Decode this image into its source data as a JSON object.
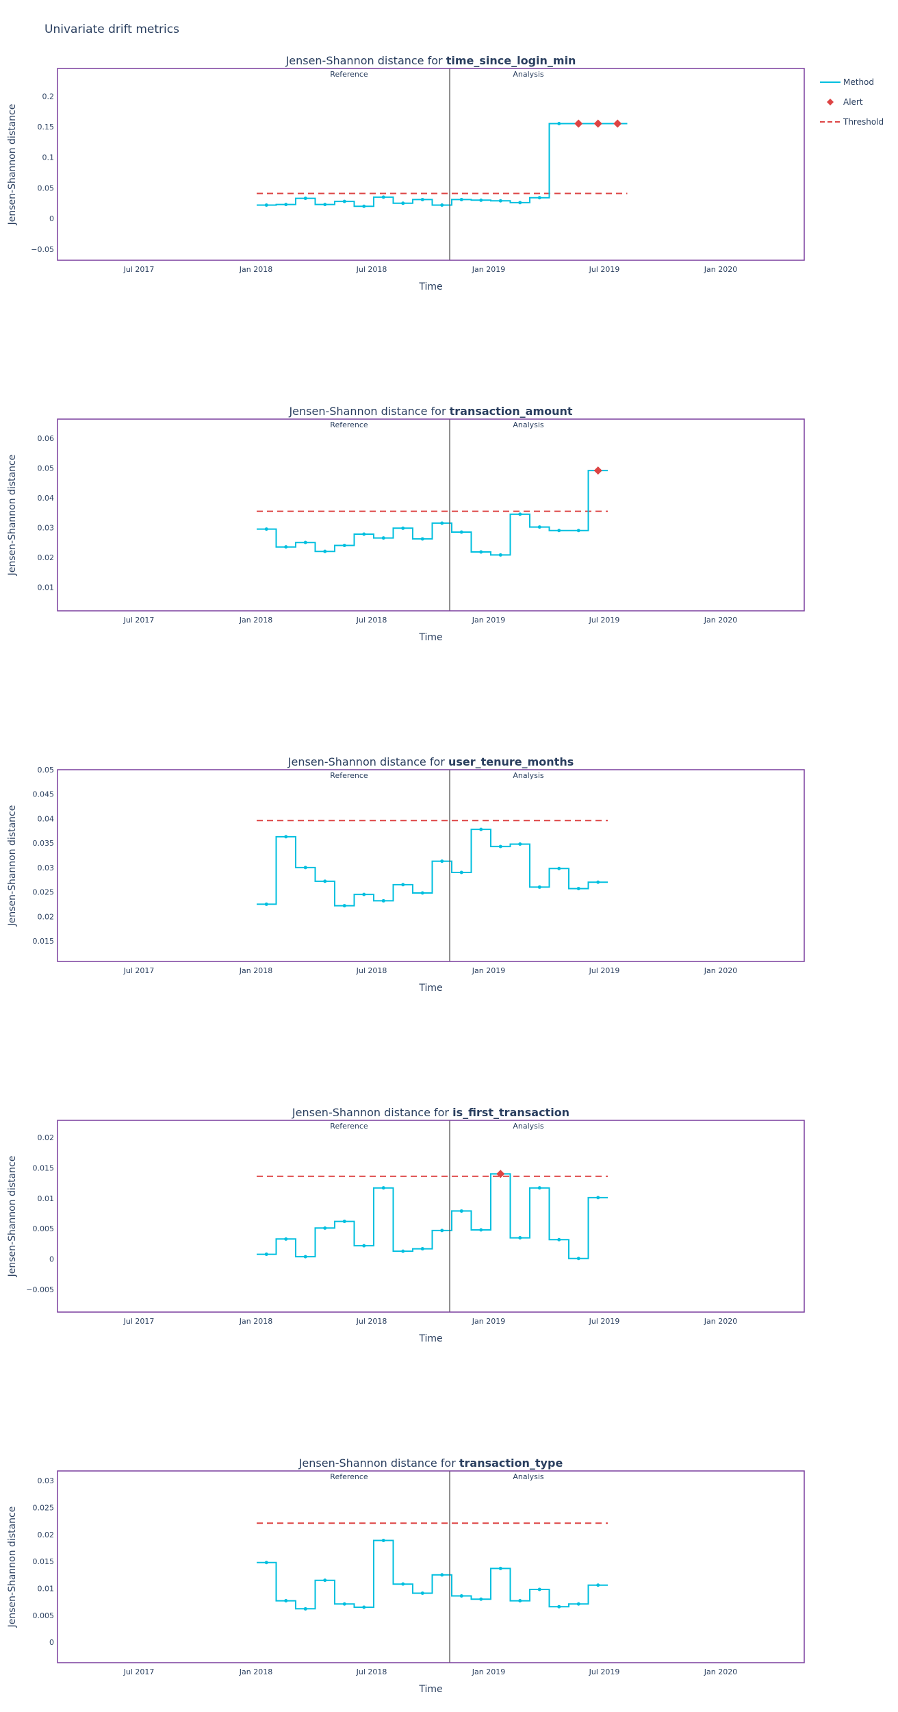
{
  "page_title": "Univariate drift metrics",
  "legend": [
    {
      "label": "Method",
      "kind": "line",
      "color": "#00bfdf"
    },
    {
      "label": "Alert",
      "kind": "diamond",
      "color": "#dd4444"
    },
    {
      "label": "Threshold",
      "kind": "dash",
      "color": "#dd4444"
    }
  ],
  "colors": {
    "method": "#00bfdf",
    "threshold": "#dd4444",
    "alert": "#dd4444",
    "frame": "#7a3e9d",
    "divider": "#555555"
  },
  "chart_data": [
    {
      "type": "line",
      "title_prefix": "Jensen-Shannon distance for ",
      "title_feature": "time_since_login_min",
      "xlabel": "Time",
      "ylabel": "Jensen-Shannon distance",
      "period_labels": [
        "Reference",
        "Analysis"
      ],
      "x_ticks": [
        "Jul 2017",
        "Jan 2018",
        "Jul 2018",
        "Jan 2019",
        "Jul 2019",
        "Jan 2020"
      ],
      "y_ticks": [
        "−0.05",
        "0",
        "0.05",
        "0.1",
        "0.15",
        "0.2"
      ],
      "y_tick_values": [
        -0.05,
        0,
        0.05,
        0.1,
        0.15,
        0.2
      ],
      "ylim": [
        -0.068,
        0.245
      ],
      "threshold": 0.041,
      "values": [
        0.022,
        0.023,
        0.033,
        0.023,
        0.028,
        0.02,
        0.035,
        0.025,
        0.031,
        0.022,
        0.031,
        0.03,
        0.029,
        0.026,
        0.034,
        0.155,
        0.155,
        0.155,
        0.155
      ],
      "alerts": [
        16,
        17,
        18
      ]
    },
    {
      "type": "line",
      "title_prefix": "Jensen-Shannon distance for ",
      "title_feature": "transaction_amount",
      "xlabel": "Time",
      "ylabel": "Jensen-Shannon distance",
      "period_labels": [
        "Reference",
        "Analysis"
      ],
      "x_ticks": [
        "Jul 2017",
        "Jan 2018",
        "Jul 2018",
        "Jan 2019",
        "Jul 2019",
        "Jan 2020"
      ],
      "y_ticks": [
        "0.01",
        "0.02",
        "0.03",
        "0.04",
        "0.05",
        "0.06"
      ],
      "y_tick_values": [
        0.01,
        0.02,
        0.03,
        0.04,
        0.05,
        0.06
      ],
      "ylim": [
        0.002,
        0.0665
      ],
      "threshold": 0.0355,
      "values": [
        0.0295,
        0.0235,
        0.025,
        0.022,
        0.024,
        0.0278,
        0.0265,
        0.0298,
        0.0262,
        0.0315,
        0.0285,
        0.0218,
        0.0208,
        0.0345,
        0.0302,
        0.029,
        0.029,
        0.0492
      ],
      "alerts": [
        17
      ]
    },
    {
      "type": "line",
      "title_prefix": "Jensen-Shannon distance for ",
      "title_feature": "user_tenure_months",
      "xlabel": "Time",
      "ylabel": "Jensen-Shannon distance",
      "period_labels": [
        "Reference",
        "Analysis"
      ],
      "x_ticks": [
        "Jul 2017",
        "Jan 2018",
        "Jul 2018",
        "Jan 2019",
        "Jul 2019",
        "Jan 2020"
      ],
      "y_ticks": [
        "0.015",
        "0.02",
        "0.025",
        "0.03",
        "0.035",
        "0.04",
        "0.045",
        "0.05"
      ],
      "y_tick_values": [
        0.015,
        0.02,
        0.025,
        0.03,
        0.035,
        0.04,
        0.045,
        0.05
      ],
      "ylim": [
        0.0108,
        0.05
      ],
      "threshold": 0.0396,
      "values": [
        0.0225,
        0.0363,
        0.03,
        0.0272,
        0.0222,
        0.0245,
        0.0232,
        0.0265,
        0.0248,
        0.0313,
        0.029,
        0.0378,
        0.0343,
        0.0348,
        0.026,
        0.0298,
        0.0257,
        0.027
      ],
      "alerts": []
    },
    {
      "type": "line",
      "title_prefix": "Jensen-Shannon distance for ",
      "title_feature": "is_first_transaction",
      "xlabel": "Time",
      "ylabel": "Jensen-Shannon distance",
      "period_labels": [
        "Reference",
        "Analysis"
      ],
      "x_ticks": [
        "Jul 2017",
        "Jan 2018",
        "Jul 2018",
        "Jan 2019",
        "Jul 2019",
        "Jan 2020"
      ],
      "y_ticks": [
        "−0.005",
        "0",
        "0.005",
        "0.01",
        "0.015",
        "0.02"
      ],
      "y_tick_values": [
        -0.005,
        0,
        0.005,
        0.01,
        0.015,
        0.02
      ],
      "ylim": [
        -0.0087,
        0.0228
      ],
      "threshold": 0.0136,
      "values": [
        0.0008,
        0.0033,
        0.0004,
        0.0051,
        0.0062,
        0.0022,
        0.0117,
        0.0013,
        0.0017,
        0.0047,
        0.0079,
        0.0048,
        0.014,
        0.0035,
        0.0117,
        0.0032,
        0.0001,
        0.0101
      ],
      "alerts": [
        12
      ]
    },
    {
      "type": "line",
      "title_prefix": "Jensen-Shannon distance for ",
      "title_feature": "transaction_type",
      "xlabel": "Time",
      "ylabel": "Jensen-Shannon distance",
      "period_labels": [
        "Reference",
        "Analysis"
      ],
      "x_ticks": [
        "Jul 2017",
        "Jan 2018",
        "Jul 2018",
        "Jan 2019",
        "Jul 2019",
        "Jan 2020"
      ],
      "y_ticks": [
        "0",
        "0.005",
        "0.01",
        "0.015",
        "0.02",
        "0.025",
        "0.03"
      ],
      "y_tick_values": [
        0,
        0.005,
        0.01,
        0.015,
        0.02,
        0.025,
        0.03
      ],
      "ylim": [
        -0.0038,
        0.0318
      ],
      "threshold": 0.0221,
      "values": [
        0.0148,
        0.0077,
        0.0062,
        0.0115,
        0.0071,
        0.0065,
        0.0189,
        0.0108,
        0.0091,
        0.0125,
        0.0086,
        0.008,
        0.0137,
        0.0077,
        0.0098,
        0.0066,
        0.0071,
        0.0106
      ],
      "alerts": []
    }
  ]
}
